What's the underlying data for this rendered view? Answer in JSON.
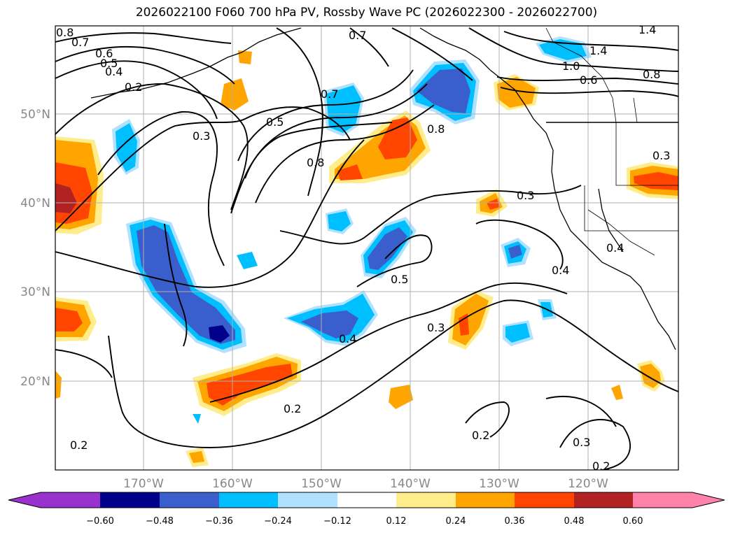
{
  "title": "2026022100 F060 700 hPa PV, Rossby Wave PC (2026022300 - 2026022700)",
  "map": {
    "lon_range": [
      -180,
      -110
    ],
    "lat_range": [
      10,
      60
    ],
    "lat_ticks": [
      {
        "value": 20,
        "label": "20°N"
      },
      {
        "value": 30,
        "label": "30°N"
      },
      {
        "value": 40,
        "label": "40°N"
      },
      {
        "value": 50,
        "label": "50°N"
      }
    ],
    "lon_ticks": [
      {
        "value": -170,
        "label": "170°W"
      },
      {
        "value": -160,
        "label": "160°W"
      },
      {
        "value": -150,
        "label": "150°W"
      },
      {
        "value": -140,
        "label": "140°W"
      },
      {
        "value": -130,
        "label": "130°W"
      },
      {
        "value": -120,
        "label": "120°W"
      }
    ],
    "gridlines": true,
    "contour_labels": [
      "0.8",
      "0.7",
      "0.6",
      "0.5",
      "0.4",
      "0.2",
      "0.3",
      "0.5",
      "0.7",
      "0.8",
      "0.8",
      "0.7",
      "1.4",
      "1.4",
      "1.0",
      "0.8",
      "0.6",
      "0.3",
      "0.3",
      "0.4",
      "0.4",
      "0.5",
      "0.4",
      "0.3",
      "0.2",
      "0.2",
      "0.3",
      "0.2",
      "0.2"
    ]
  },
  "colorbar": {
    "orientation": "horizontal",
    "extend": "both",
    "colors": [
      "#9932cc",
      "#00008b",
      "#3a5fcd",
      "#00bfff",
      "#b0e2ff",
      "#ffffff",
      "#ffec8b",
      "#ffa500",
      "#ff4500",
      "#b22222",
      "#ff82ab"
    ],
    "tick_labels": [
      "−0.60",
      "−0.48",
      "−0.36",
      "−0.24",
      "−0.12",
      "0.12",
      "0.24",
      "0.36",
      "0.48",
      "0.60"
    ]
  }
}
